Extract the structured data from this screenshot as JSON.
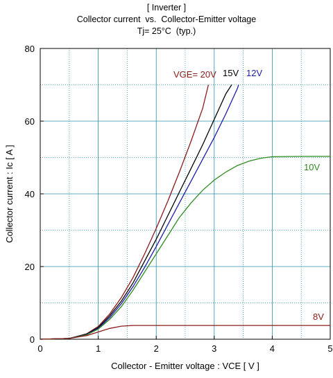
{
  "chart_data": {
    "type": "line",
    "title_lines": [
      "[ Inverter ]",
      "Collector current  vs.  Collector-Emitter voltage",
      "Tj= 25°C  (typ.)"
    ],
    "xlabel": "Collector - Emitter voltage  :  VCE  [ V ]",
    "ylabel": "Collector current  :  Ic  [ A ]",
    "xlim": [
      0,
      5
    ],
    "ylim": [
      0,
      80
    ],
    "xticks": [
      0,
      1,
      2,
      3,
      4,
      5
    ],
    "yticks": [
      0,
      20,
      40,
      60,
      80
    ],
    "x_minor_step": 0.5,
    "y_minor_step": 10,
    "grid": true,
    "colors": {
      "grid": "#2a8fa8",
      "axis": "#000000"
    },
    "series": [
      {
        "name": "VGE= 20V",
        "color": "#8b1a1a",
        "points": [
          [
            0,
            0
          ],
          [
            0.5,
            0.2
          ],
          [
            0.8,
            1.5
          ],
          [
            1.0,
            3.5
          ],
          [
            1.2,
            7
          ],
          [
            1.4,
            11.5
          ],
          [
            1.6,
            17
          ],
          [
            1.8,
            23.5
          ],
          [
            2.0,
            30.5
          ],
          [
            2.2,
            38
          ],
          [
            2.4,
            46
          ],
          [
            2.6,
            54.5
          ],
          [
            2.8,
            63.5
          ],
          [
            2.9,
            70
          ]
        ]
      },
      {
        "name": "15V",
        "color": "#000000",
        "points": [
          [
            0,
            0
          ],
          [
            0.5,
            0.2
          ],
          [
            0.8,
            1.4
          ],
          [
            1.0,
            3.2
          ],
          [
            1.2,
            6.5
          ],
          [
            1.4,
            10.5
          ],
          [
            1.6,
            15.5
          ],
          [
            1.8,
            21.5
          ],
          [
            2.0,
            27.5
          ],
          [
            2.2,
            34
          ],
          [
            2.4,
            40.5
          ],
          [
            2.6,
            47
          ],
          [
            2.8,
            53.5
          ],
          [
            3.0,
            60.5
          ],
          [
            3.2,
            67.5
          ],
          [
            3.3,
            70
          ]
        ]
      },
      {
        "name": "12V",
        "color": "#1c1ca8",
        "points": [
          [
            0,
            0
          ],
          [
            0.5,
            0.2
          ],
          [
            0.8,
            1.3
          ],
          [
            1.0,
            3.0
          ],
          [
            1.2,
            6
          ],
          [
            1.4,
            9.8
          ],
          [
            1.6,
            14.5
          ],
          [
            1.8,
            19.8
          ],
          [
            2.0,
            25.5
          ],
          [
            2.2,
            31.5
          ],
          [
            2.4,
            37.5
          ],
          [
            2.6,
            43.5
          ],
          [
            2.8,
            49.5
          ],
          [
            3.0,
            55.5
          ],
          [
            3.2,
            62
          ],
          [
            3.4,
            69
          ],
          [
            3.42,
            70
          ]
        ]
      },
      {
        "name": "10V",
        "color": "#2e8b22",
        "points": [
          [
            0,
            0
          ],
          [
            0.5,
            0.2
          ],
          [
            0.8,
            1.2
          ],
          [
            1.0,
            2.8
          ],
          [
            1.2,
            5.5
          ],
          [
            1.4,
            9
          ],
          [
            1.6,
            13.5
          ],
          [
            1.8,
            18.5
          ],
          [
            2.0,
            23.5
          ],
          [
            2.2,
            28.5
          ],
          [
            2.4,
            33.5
          ],
          [
            2.6,
            37.5
          ],
          [
            2.8,
            41
          ],
          [
            3.0,
            43.8
          ],
          [
            3.2,
            46
          ],
          [
            3.4,
            47.8
          ],
          [
            3.6,
            49
          ],
          [
            3.8,
            49.8
          ],
          [
            4.0,
            50.2
          ],
          [
            4.5,
            50.3
          ],
          [
            5.0,
            50.3
          ]
        ]
      },
      {
        "name": "8V",
        "color": "#8b1a1a",
        "points": [
          [
            0,
            0
          ],
          [
            0.5,
            0.2
          ],
          [
            0.8,
            1.0
          ],
          [
            1.0,
            2.0
          ],
          [
            1.2,
            3.0
          ],
          [
            1.4,
            3.6
          ],
          [
            1.6,
            3.8
          ],
          [
            2.0,
            3.8
          ],
          [
            3.0,
            3.8
          ],
          [
            4.0,
            3.8
          ],
          [
            5.0,
            3.8
          ]
        ]
      }
    ],
    "series_labels": [
      {
        "text": "VGE= 20V",
        "series": 0
      },
      {
        "text": "15V",
        "series": 1
      },
      {
        "text": "12V",
        "series": 2
      },
      {
        "text": "10V",
        "series": 3
      },
      {
        "text": "8V",
        "series": 4
      }
    ]
  }
}
